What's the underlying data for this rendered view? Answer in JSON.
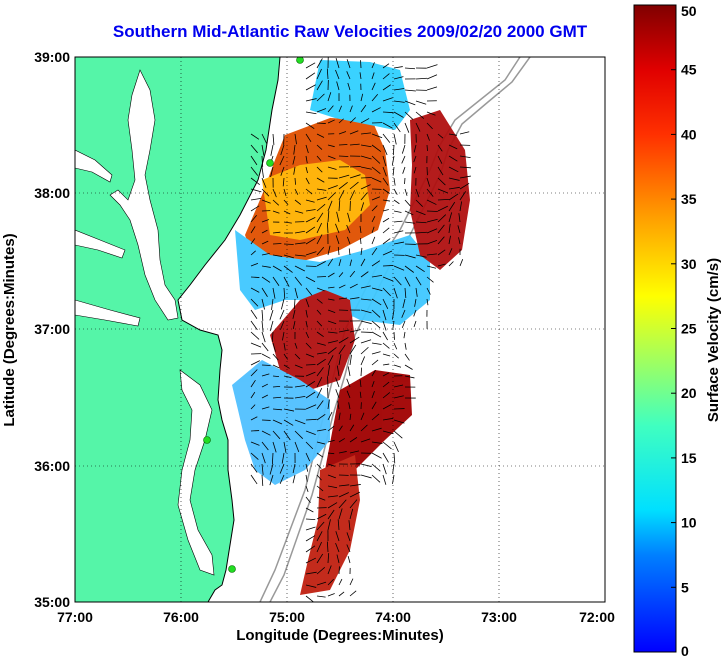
{
  "title": "Southern Mid-Atlantic Raw Velocities 2009/02/20 2000 GMT",
  "xlabel": "Longitude (Degrees:Minutes)",
  "ylabel": "Latitude (Degrees:Minutes)",
  "x_ticks": [
    "77:00",
    "76:00",
    "75:00",
    "74:00",
    "73:00",
    "72:00"
  ],
  "y_ticks": [
    "39:00",
    "38:00",
    "37:00",
    "36:00",
    "35:00"
  ],
  "colorbar": {
    "label": "Surface Velocity (cm/s)",
    "ticks": [
      "50",
      "45",
      "40",
      "35",
      "30",
      "25",
      "20",
      "15",
      "10",
      "5",
      "0"
    ],
    "min": 0,
    "max": 50
  },
  "colors": {
    "land": "#55f5a8",
    "title": "#0000ee",
    "station": "#22dd22",
    "bathymetry": "#999999"
  }
}
